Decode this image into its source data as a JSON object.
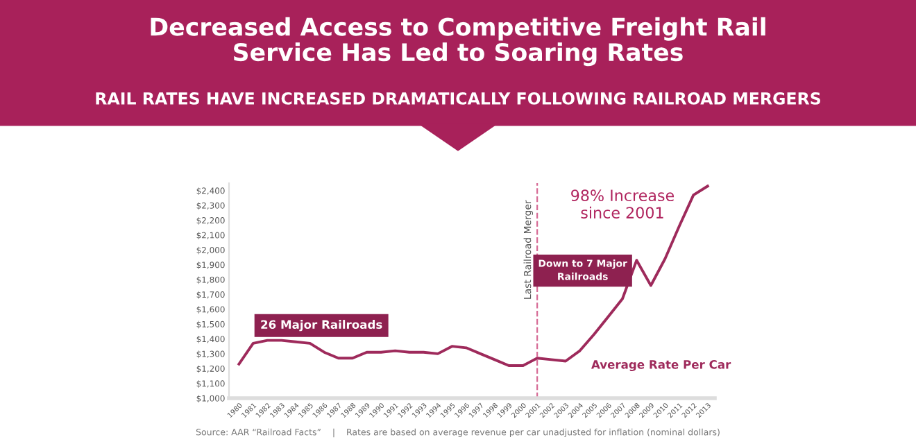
{
  "chart_data": {
    "type": "line",
    "title": "Decreased Access to Competitive Freight Rail\nService Has Led to Soaring Rates",
    "subtitle": "RAIL RATES HAVE INCREASED DRAMATICALLY FOLLOWING RAILROAD MERGERS",
    "x": [
      1980,
      1981,
      1982,
      1983,
      1984,
      1985,
      1986,
      1987,
      1988,
      1989,
      1990,
      1991,
      1992,
      1993,
      1994,
      1995,
      1996,
      1997,
      1998,
      1999,
      2000,
      2001,
      2002,
      2003,
      2004,
      2005,
      2006,
      2007,
      2008,
      2009,
      2010,
      2011,
      2012,
      2013
    ],
    "series": [
      {
        "name": "Average Rate Per Car",
        "color": "#9e2a5b",
        "values": [
          1230,
          1370,
          1390,
          1390,
          1380,
          1370,
          1310,
          1270,
          1270,
          1310,
          1310,
          1320,
          1310,
          1310,
          1300,
          1350,
          1340,
          1300,
          1260,
          1220,
          1220,
          1270,
          1260,
          1250,
          1320,
          1430,
          1550,
          1670,
          1930,
          1760,
          1940,
          2160,
          2370,
          2430
        ]
      }
    ],
    "xlim": [
      1979.3,
      2013.5
    ],
    "xticks": [
      1980,
      1981,
      1982,
      1983,
      1984,
      1985,
      1986,
      1987,
      1988,
      1989,
      1990,
      1991,
      1992,
      1993,
      1994,
      1995,
      1996,
      1997,
      1998,
      1999,
      2000,
      2001,
      2002,
      2003,
      2004,
      2005,
      2006,
      2007,
      2008,
      2009,
      2010,
      2011,
      2012,
      2013
    ],
    "ylim": [
      1000,
      2450
    ],
    "yticks": [
      {
        "value": 1000,
        "label": "$1,000"
      },
      {
        "value": 1100,
        "label": "$1,100"
      },
      {
        "value": 1200,
        "label": "$1,200"
      },
      {
        "value": 1300,
        "label": "$1,300"
      },
      {
        "value": 1400,
        "label": "$1,400"
      },
      {
        "value": 1500,
        "label": "$1,500"
      },
      {
        "value": 1600,
        "label": "$1,600"
      },
      {
        "value": 1700,
        "label": "$1,700"
      },
      {
        "value": 1800,
        "label": "$1,800"
      },
      {
        "value": 1900,
        "label": "$1,900"
      },
      {
        "value": 2000,
        "label": "$2,000"
      },
      {
        "value": 2100,
        "label": "$2,100"
      },
      {
        "value": 2200,
        "label": "$2,200"
      },
      {
        "value": 2300,
        "label": "$2,300"
      },
      {
        "value": 2400,
        "label": "$2,400"
      }
    ],
    "ref_lines": [
      {
        "axis": "x",
        "value": 2001,
        "label": "Last Railroad Merger",
        "color": "#d66a95",
        "line_style": "dashed"
      }
    ],
    "annotations": [
      "26 Major Railroads",
      "Down to 7 Major\nRailroads",
      "98% Increase\nsince 2001",
      "Source: AAR “Railroad Facts”    |    Rates are based on average revenue per car unadjusted for inflation (nominal dollars)"
    ],
    "grid": false,
    "legend": false,
    "marker": "none",
    "line_style": "solid"
  }
}
